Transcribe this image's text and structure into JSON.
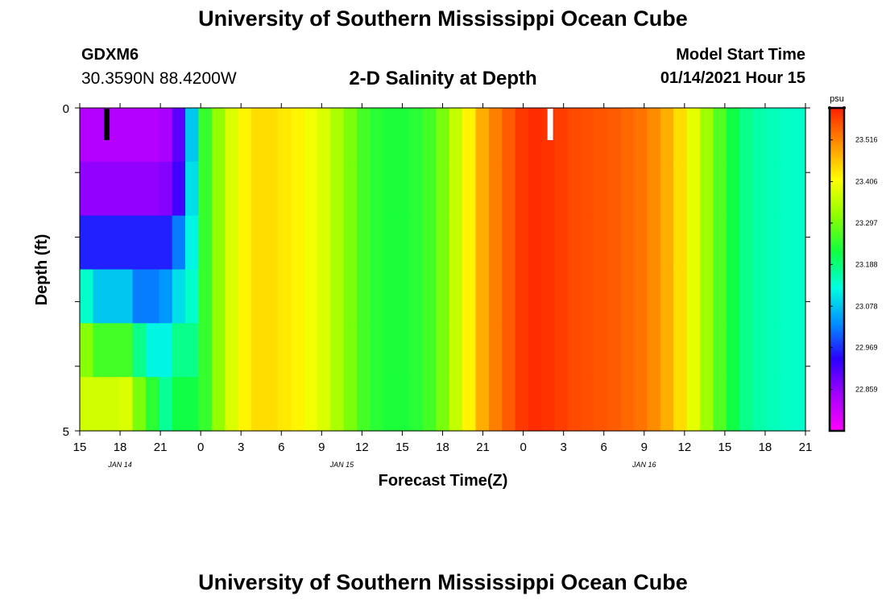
{
  "header": {
    "title": "University of Southern Mississippi Ocean Cube",
    "station": "GDXM6",
    "coords": "30.3590N 88.4200W",
    "subtitle": "2-D Salinity at Depth",
    "model_start_label": "Model Start Time",
    "model_start_value": "01/14/2021 Hour 15"
  },
  "footer": {
    "title": "University of Southern Mississippi Ocean Cube"
  },
  "chart_data": {
    "type": "heatmap",
    "title": "2-D Salinity at Depth",
    "xlabel": "Forecast Time(Z)",
    "ylabel": "Depth (ft)",
    "x_ticks": [
      "15",
      "18",
      "21",
      "0",
      "3",
      "6",
      "9",
      "12",
      "15",
      "18",
      "21",
      "0",
      "3",
      "6",
      "9",
      "12",
      "15",
      "18",
      "21"
    ],
    "date_labels": [
      {
        "label": "JAN 14",
        "tick": 1
      },
      {
        "label": "JAN 15",
        "tick": 6.5
      },
      {
        "label": "JAN 16",
        "tick": 14
      }
    ],
    "y_ticks": [
      "0",
      "5"
    ],
    "ylim": [
      0,
      5
    ],
    "colorbar": {
      "unit": "psu",
      "tick_labels": [
        "23.516",
        "23.406",
        "23.297",
        "23.188",
        "23.078",
        "22.969",
        "22.859"
      ],
      "tick_values": [
        23.516,
        23.406,
        23.297,
        23.188,
        23.078,
        22.969,
        22.859
      ],
      "range": [
        22.75,
        23.6
      ],
      "colors": [
        "#ff00ff",
        "#a600ff",
        "#2a00ff",
        "#0090ff",
        "#00ffe0",
        "#10ff40",
        "#90ff00",
        "#ffff00",
        "#ff9000",
        "#ff2000"
      ]
    },
    "columns": [
      [
        22.83,
        22.86,
        22.96,
        23.14,
        23.31,
        23.37
      ],
      [
        22.83,
        22.86,
        22.96,
        23.08,
        23.26,
        23.37
      ],
      [
        22.83,
        22.86,
        22.96,
        23.08,
        23.26,
        23.37
      ],
      [
        22.83,
        22.86,
        22.96,
        23.08,
        23.26,
        23.38
      ],
      [
        22.83,
        22.86,
        22.96,
        23.02,
        23.18,
        23.3
      ],
      [
        22.83,
        22.86,
        22.96,
        23.02,
        23.12,
        23.24
      ],
      [
        22.84,
        22.87,
        22.96,
        23.04,
        23.12,
        23.17
      ],
      [
        22.9,
        22.92,
        23.02,
        23.1,
        23.18,
        23.22
      ],
      [
        23.08,
        23.1,
        23.12,
        23.14,
        23.18,
        23.22
      ],
      [
        23.25,
        23.25,
        23.25,
        23.25,
        23.25,
        23.25
      ],
      [
        23.32,
        23.32,
        23.32,
        23.32,
        23.32,
        23.32
      ],
      [
        23.38,
        23.38,
        23.38,
        23.38,
        23.38,
        23.38
      ],
      [
        23.42,
        23.42,
        23.42,
        23.42,
        23.42,
        23.42
      ],
      [
        23.44,
        23.44,
        23.44,
        23.44,
        23.44,
        23.44
      ],
      [
        23.44,
        23.44,
        23.44,
        23.44,
        23.44,
        23.44
      ],
      [
        23.43,
        23.43,
        23.43,
        23.43,
        23.43,
        23.43
      ],
      [
        23.42,
        23.42,
        23.42,
        23.42,
        23.42,
        23.42
      ],
      [
        23.4,
        23.4,
        23.4,
        23.4,
        23.4,
        23.4
      ],
      [
        23.38,
        23.38,
        23.38,
        23.38,
        23.38,
        23.38
      ],
      [
        23.34,
        23.34,
        23.34,
        23.34,
        23.34,
        23.34
      ],
      [
        23.3,
        23.3,
        23.3,
        23.3,
        23.3,
        23.3
      ],
      [
        23.26,
        23.26,
        23.26,
        23.26,
        23.26,
        23.26
      ],
      [
        23.24,
        23.24,
        23.24,
        23.24,
        23.24,
        23.24
      ],
      [
        23.23,
        23.23,
        23.23,
        23.23,
        23.23,
        23.23
      ],
      [
        23.23,
        23.23,
        23.23,
        23.23,
        23.23,
        23.23
      ],
      [
        23.24,
        23.24,
        23.24,
        23.24,
        23.24,
        23.24
      ],
      [
        23.26,
        23.26,
        23.26,
        23.26,
        23.26,
        23.26
      ],
      [
        23.3,
        23.3,
        23.3,
        23.3,
        23.3,
        23.3
      ],
      [
        23.36,
        23.36,
        23.36,
        23.36,
        23.36,
        23.36
      ],
      [
        23.42,
        23.42,
        23.42,
        23.42,
        23.42,
        23.42
      ],
      [
        23.48,
        23.48,
        23.48,
        23.48,
        23.48,
        23.48
      ],
      [
        23.52,
        23.52,
        23.52,
        23.52,
        23.52,
        23.52
      ],
      [
        23.55,
        23.55,
        23.55,
        23.55,
        23.55,
        23.55
      ],
      [
        23.58,
        23.58,
        23.58,
        23.58,
        23.58,
        23.58
      ],
      [
        23.59,
        23.59,
        23.59,
        23.59,
        23.59,
        23.59
      ],
      [
        23.585,
        23.585,
        23.585,
        23.585,
        23.585,
        23.585
      ],
      [
        23.575,
        23.575,
        23.575,
        23.575,
        23.575,
        23.575
      ],
      [
        23.565,
        23.565,
        23.565,
        23.565,
        23.565,
        23.565
      ],
      [
        23.56,
        23.56,
        23.56,
        23.56,
        23.56,
        23.56
      ],
      [
        23.555,
        23.555,
        23.555,
        23.555,
        23.555,
        23.555
      ],
      [
        23.55,
        23.55,
        23.55,
        23.55,
        23.55,
        23.55
      ],
      [
        23.54,
        23.54,
        23.54,
        23.54,
        23.54,
        23.54
      ],
      [
        23.53,
        23.53,
        23.53,
        23.53,
        23.53,
        23.53
      ],
      [
        23.51,
        23.51,
        23.51,
        23.51,
        23.51,
        23.51
      ],
      [
        23.48,
        23.48,
        23.48,
        23.48,
        23.48,
        23.48
      ],
      [
        23.44,
        23.44,
        23.44,
        23.44,
        23.44,
        23.44
      ],
      [
        23.39,
        23.39,
        23.39,
        23.39,
        23.39,
        23.39
      ],
      [
        23.33,
        23.33,
        23.33,
        23.33,
        23.33,
        23.33
      ],
      [
        23.27,
        23.27,
        23.27,
        23.27,
        23.27,
        23.27
      ],
      [
        23.22,
        23.22,
        23.22,
        23.22,
        23.22,
        23.22
      ],
      [
        23.18,
        23.18,
        23.18,
        23.18,
        23.18,
        23.18
      ],
      [
        23.16,
        23.16,
        23.16,
        23.16,
        23.16,
        23.16
      ],
      [
        23.15,
        23.15,
        23.15,
        23.15,
        23.15,
        23.15
      ],
      [
        23.145,
        23.145,
        23.145,
        23.145,
        23.145,
        23.145
      ],
      [
        23.14,
        23.14,
        23.14,
        23.14,
        23.14,
        23.14
      ]
    ],
    "markers": [
      {
        "label": "black",
        "color": "#000000",
        "tick": 0.6
      },
      {
        "label": "white",
        "color": "#ffffff",
        "tick": 11.6
      }
    ]
  }
}
